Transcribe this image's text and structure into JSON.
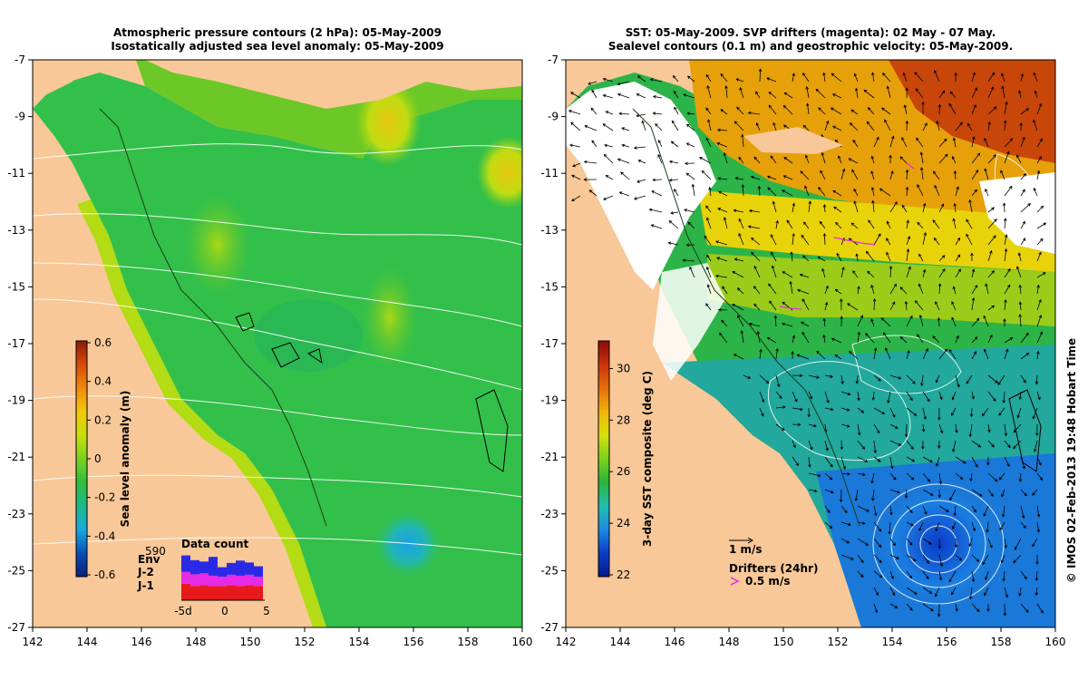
{
  "left_panel": {
    "title_line1": "Atmospheric pressure contours (2 hPa): 05-May-2009",
    "title_line2": "Isostatically adjusted sea level anomaly: 05-May-2009",
    "colorbar": {
      "label": "Sea level anomaly (m)",
      "ticks": [
        "0.6",
        "0.4",
        "0.2",
        "0",
        "-0.2",
        "-0.4",
        "-0.6"
      ],
      "colors": [
        "#08207a",
        "#0a4fb4",
        "#16a9e0",
        "#1fb98a",
        "#2fbe3c",
        "#7ad21e",
        "#c8e00a",
        "#f2c80a",
        "#f08a0a",
        "#d84a06",
        "#8c1a04"
      ]
    },
    "data_count": {
      "title": "Data count",
      "max_label": "590",
      "legend": [
        "Env",
        "J-2",
        "J-1"
      ],
      "legend_colors": [
        "#2a2ae6",
        "#e62ae6",
        "#e61a1a"
      ],
      "x_ticks": [
        "-5d",
        "0",
        "5"
      ],
      "bars": [
        {
          "j1": 0.35,
          "j2": 0.25,
          "env": 0.35
        },
        {
          "j1": 0.3,
          "j2": 0.25,
          "env": 0.3
        },
        {
          "j1": 0.32,
          "j2": 0.25,
          "env": 0.25
        },
        {
          "j1": 0.3,
          "j2": 0.22,
          "env": 0.4
        },
        {
          "j1": 0.3,
          "j2": 0.2,
          "env": 0.2
        },
        {
          "j1": 0.32,
          "j2": 0.22,
          "env": 0.25
        },
        {
          "j1": 0.3,
          "j2": 0.22,
          "env": 0.32
        },
        {
          "j1": 0.32,
          "j2": 0.22,
          "env": 0.26
        },
        {
          "j1": 0.3,
          "j2": 0.2,
          "env": 0.22
        }
      ]
    }
  },
  "right_panel": {
    "title_line1": "SST: 05-May-2009. SVP drifters (magenta): 02 May - 07 May.",
    "title_line2": "Sealevel contours (0.1 m) and geostrophic velocity: 05-May-2009.",
    "colorbar": {
      "label": "3-day SST composite (deg C)",
      "ticks": [
        "30",
        "28",
        "26",
        "24",
        "22"
      ],
      "colors": [
        "#0a1a8c",
        "#0a3cc8",
        "#1a8ce6",
        "#20c0b0",
        "#28b43c",
        "#7cd21c",
        "#d8e00a",
        "#f0b40a",
        "#e66e0a",
        "#c8320a",
        "#8c0a0a"
      ]
    },
    "velocity_legend": "1 m/s",
    "drifters_legend_title": "Drifters (24hr)",
    "drifters_legend_speed": "0.5 m/s"
  },
  "axes": {
    "x_ticks": [
      "142",
      "144",
      "146",
      "148",
      "150",
      "152",
      "154",
      "156",
      "158",
      "160"
    ],
    "y_ticks": [
      "-7",
      "-9",
      "-11",
      "-13",
      "-15",
      "-17",
      "-19",
      "-21",
      "-23",
      "-25",
      "-27"
    ]
  },
  "credit": "© IMOS 02-Feb-2013 19:48 Hobart Time",
  "colors": {
    "land": "#f8c898",
    "ocean_green": "#33c04a",
    "white_cloud": "#ffffff"
  }
}
